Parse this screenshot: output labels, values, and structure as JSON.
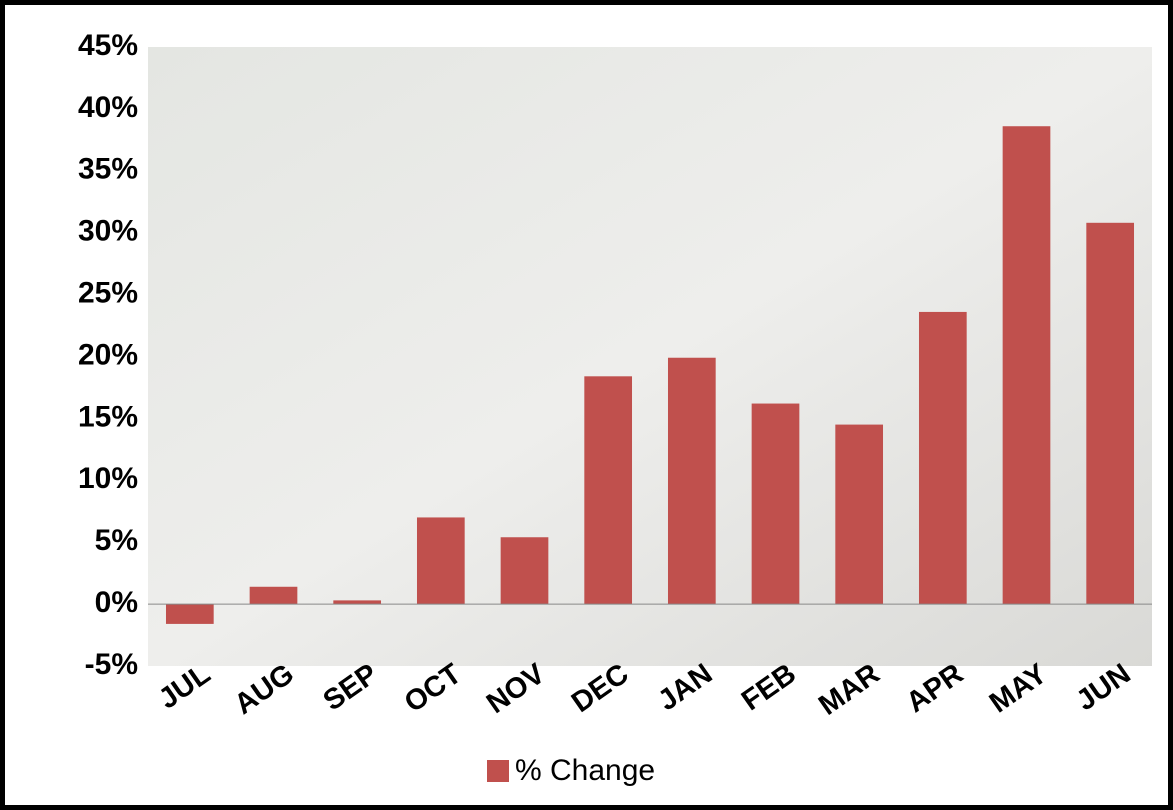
{
  "chart_data": {
    "type": "bar",
    "categories": [
      "JUL",
      "AUG",
      "SEP",
      "OCT",
      "NOV",
      "DEC",
      "JAN",
      "FEB",
      "MAR",
      "APR",
      "MAY",
      "JUN"
    ],
    "series": [
      {
        "name": "% Change",
        "color": "#c0504d",
        "values": [
          -1.6,
          1.4,
          0.3,
          7.0,
          5.4,
          18.4,
          19.9,
          16.2,
          14.5,
          23.6,
          38.6,
          30.8
        ]
      }
    ],
    "ylim": [
      -5,
      45
    ],
    "yticks": [
      {
        "value": -5,
        "label": "-5%"
      },
      {
        "value": 0,
        "label": "0%"
      },
      {
        "value": 5,
        "label": "5%"
      },
      {
        "value": 10,
        "label": "10%"
      },
      {
        "value": 15,
        "label": "15%"
      },
      {
        "value": 20,
        "label": "20%"
      },
      {
        "value": 25,
        "label": "25%"
      },
      {
        "value": 30,
        "label": "30%"
      },
      {
        "value": 35,
        "label": "35%"
      },
      {
        "value": 40,
        "label": "40%"
      },
      {
        "value": 45,
        "label": "45%"
      }
    ],
    "legend": "bottom"
  }
}
